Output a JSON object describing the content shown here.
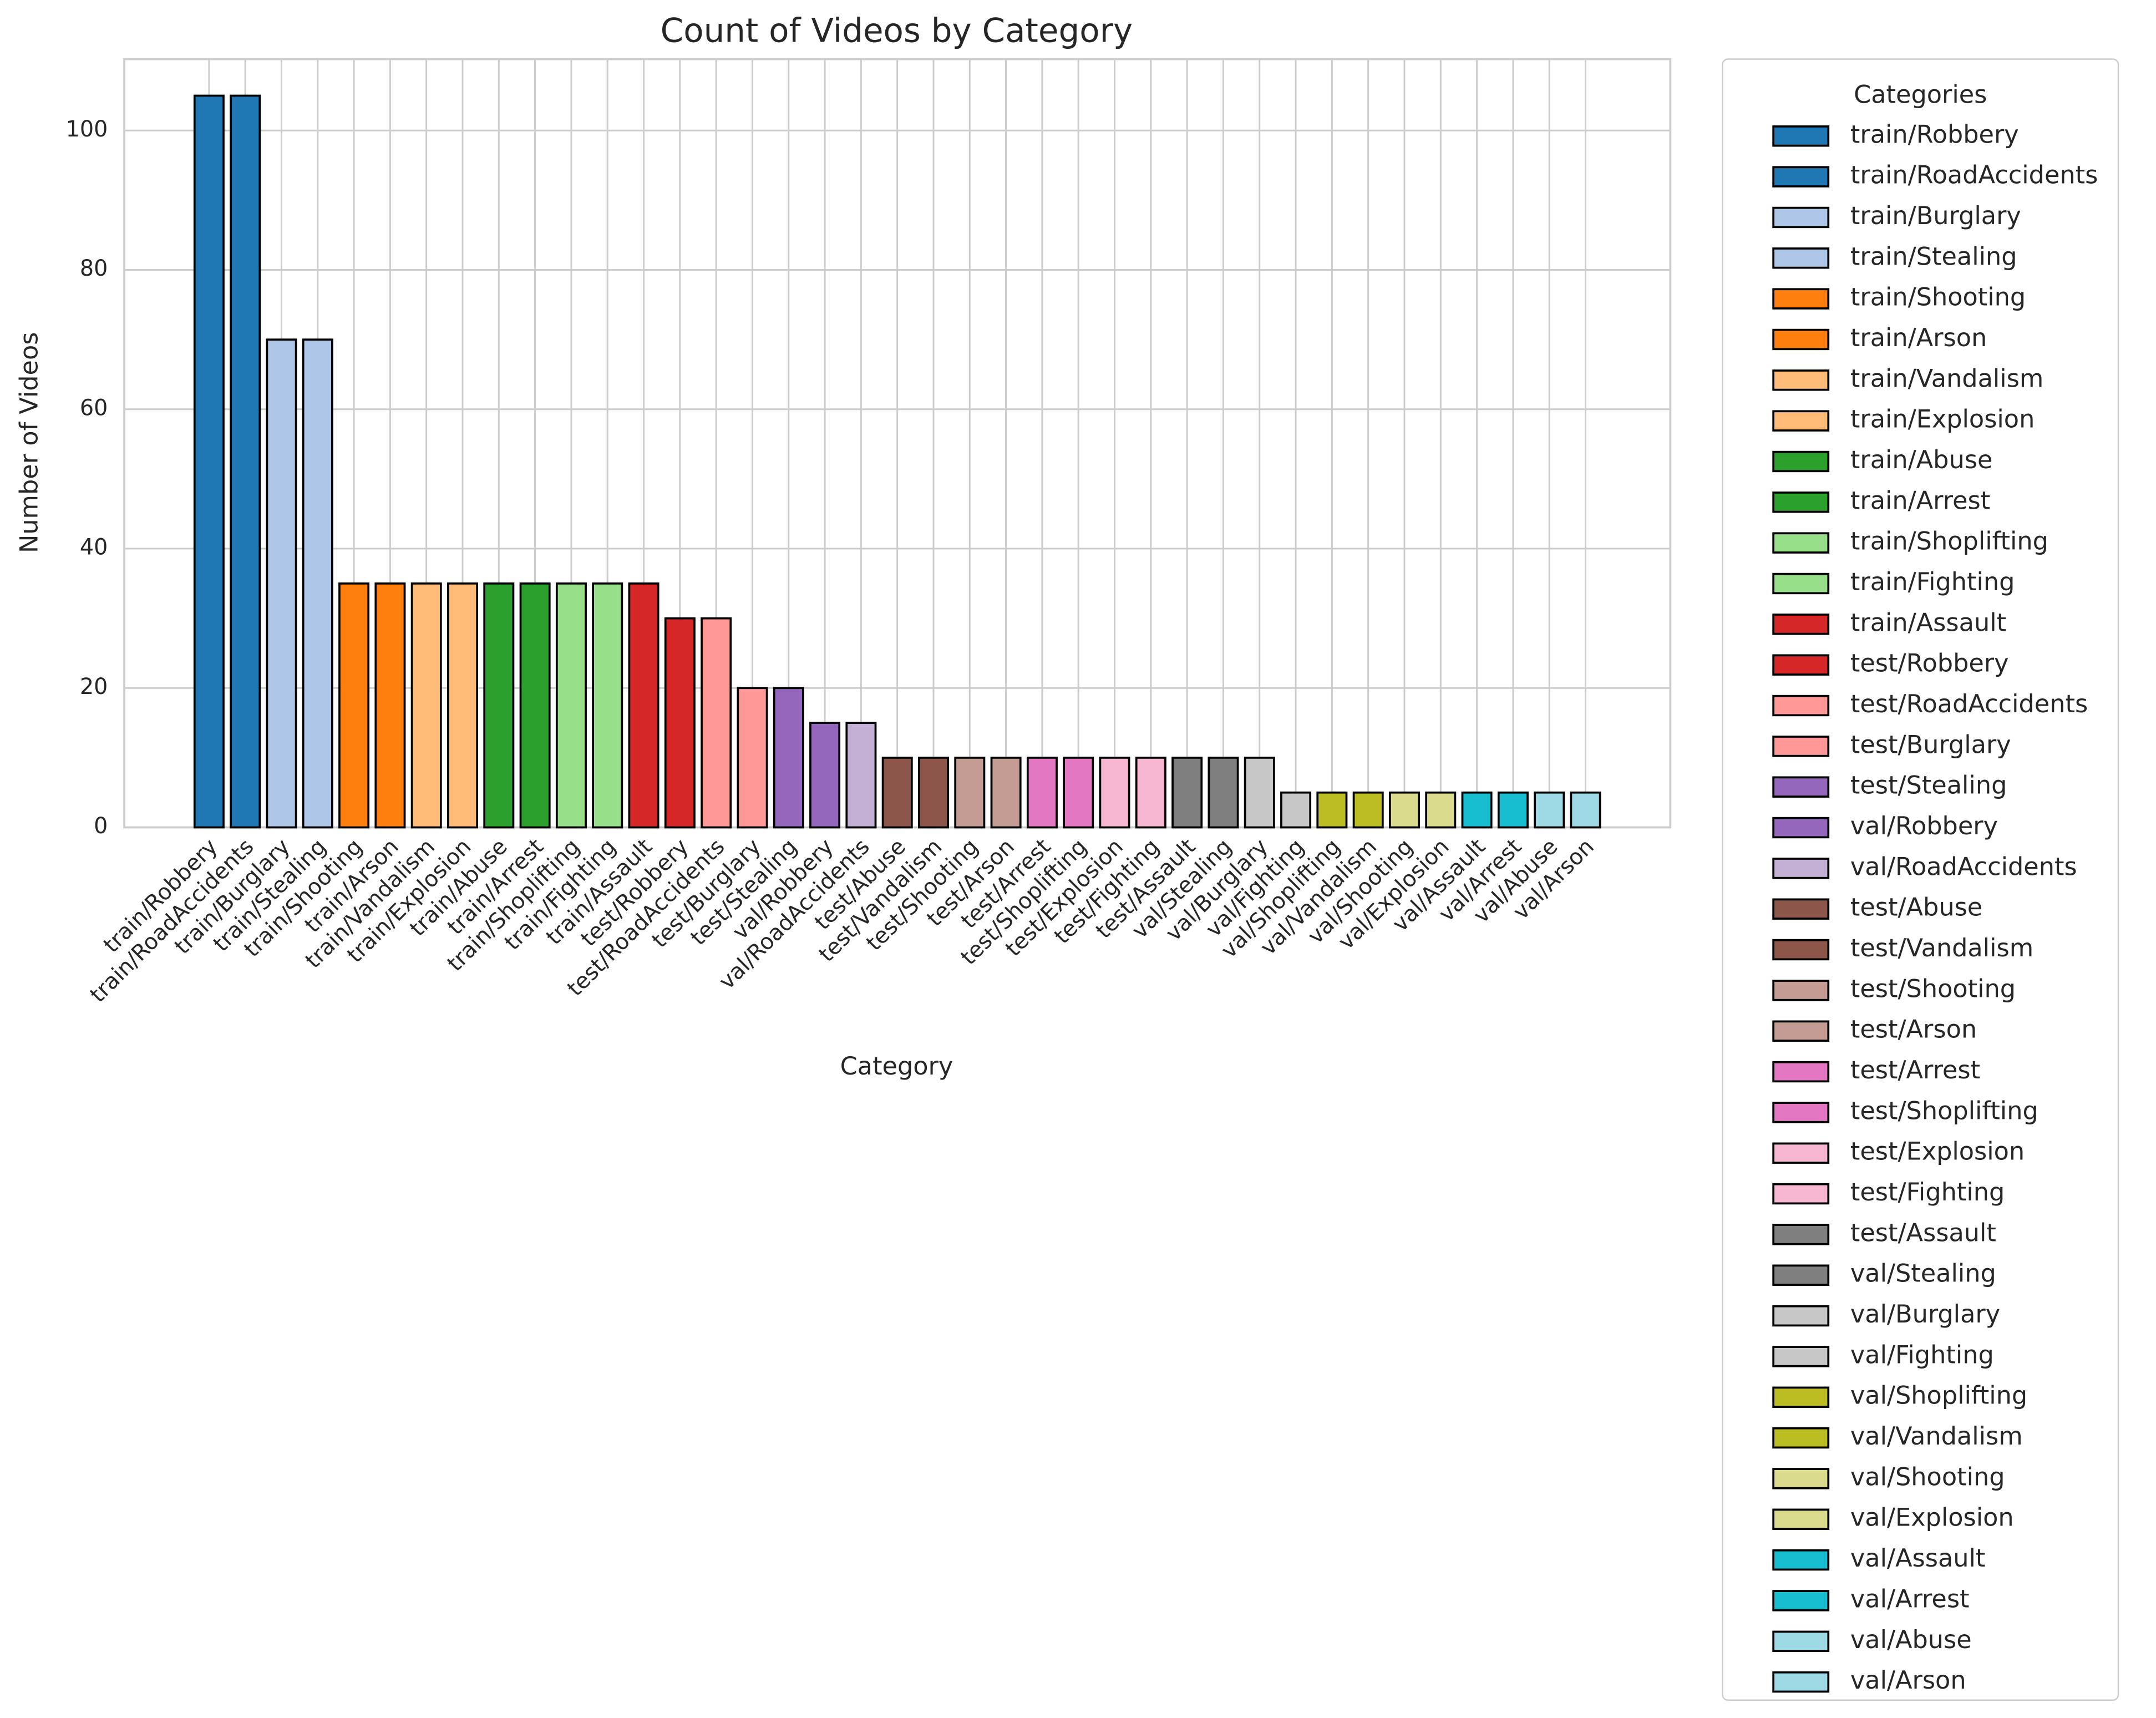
{
  "chart_data": {
    "type": "bar",
    "title": "Count of Videos by Category",
    "xlabel": "Category",
    "ylabel": "Number of Videos",
    "legend_title": "Categories",
    "legend_position": "outside right",
    "categories": [
      "train/Robbery",
      "train/RoadAccidents",
      "train/Burglary",
      "train/Stealing",
      "train/Shooting",
      "train/Arson",
      "train/Vandalism",
      "train/Explosion",
      "train/Abuse",
      "train/Arrest",
      "train/Shoplifting",
      "train/Fighting",
      "train/Assault",
      "test/Robbery",
      "test/RoadAccidents",
      "test/Burglary",
      "test/Stealing",
      "val/Robbery",
      "val/RoadAccidents",
      "test/Abuse",
      "test/Vandalism",
      "test/Shooting",
      "test/Arson",
      "test/Arrest",
      "test/Shoplifting",
      "test/Explosion",
      "test/Fighting",
      "test/Assault",
      "val/Stealing",
      "val/Burglary",
      "val/Fighting",
      "val/Shoplifting",
      "val/Vandalism",
      "val/Shooting",
      "val/Explosion",
      "val/Assault",
      "val/Arrest",
      "val/Abuse",
      "val/Arson"
    ],
    "values": [
      105,
      105,
      70,
      70,
      35,
      35,
      35,
      35,
      35,
      35,
      35,
      35,
      35,
      30,
      30,
      20,
      20,
      15,
      15,
      10,
      10,
      10,
      10,
      10,
      10,
      10,
      10,
      10,
      10,
      10,
      5,
      5,
      5,
      5,
      5,
      5,
      5,
      5,
      5
    ],
    "colors": [
      "#1f77b4",
      "#1f77b4",
      "#aec7e8",
      "#aec7e8",
      "#ff7f0e",
      "#ff7f0e",
      "#ffbb78",
      "#ffbb78",
      "#2ca02c",
      "#2ca02c",
      "#98df8a",
      "#98df8a",
      "#d62728",
      "#d62728",
      "#ff9896",
      "#ff9896",
      "#9467bd",
      "#9467bd",
      "#c5b0d5",
      "#8c564b",
      "#8c564b",
      "#c49c94",
      "#c49c94",
      "#e377c2",
      "#e377c2",
      "#f7b6d2",
      "#f7b6d2",
      "#7f7f7f",
      "#7f7f7f",
      "#c7c7c7",
      "#c7c7c7",
      "#bcbd22",
      "#bcbd22",
      "#dbdb8d",
      "#dbdb8d",
      "#17becf",
      "#17becf",
      "#9edae5",
      "#9edae5"
    ],
    "edgecolor": "#000000",
    "ylim": [
      0,
      110.25
    ],
    "yticks": [
      0,
      20,
      40,
      60,
      80,
      100
    ],
    "grid": true
  }
}
